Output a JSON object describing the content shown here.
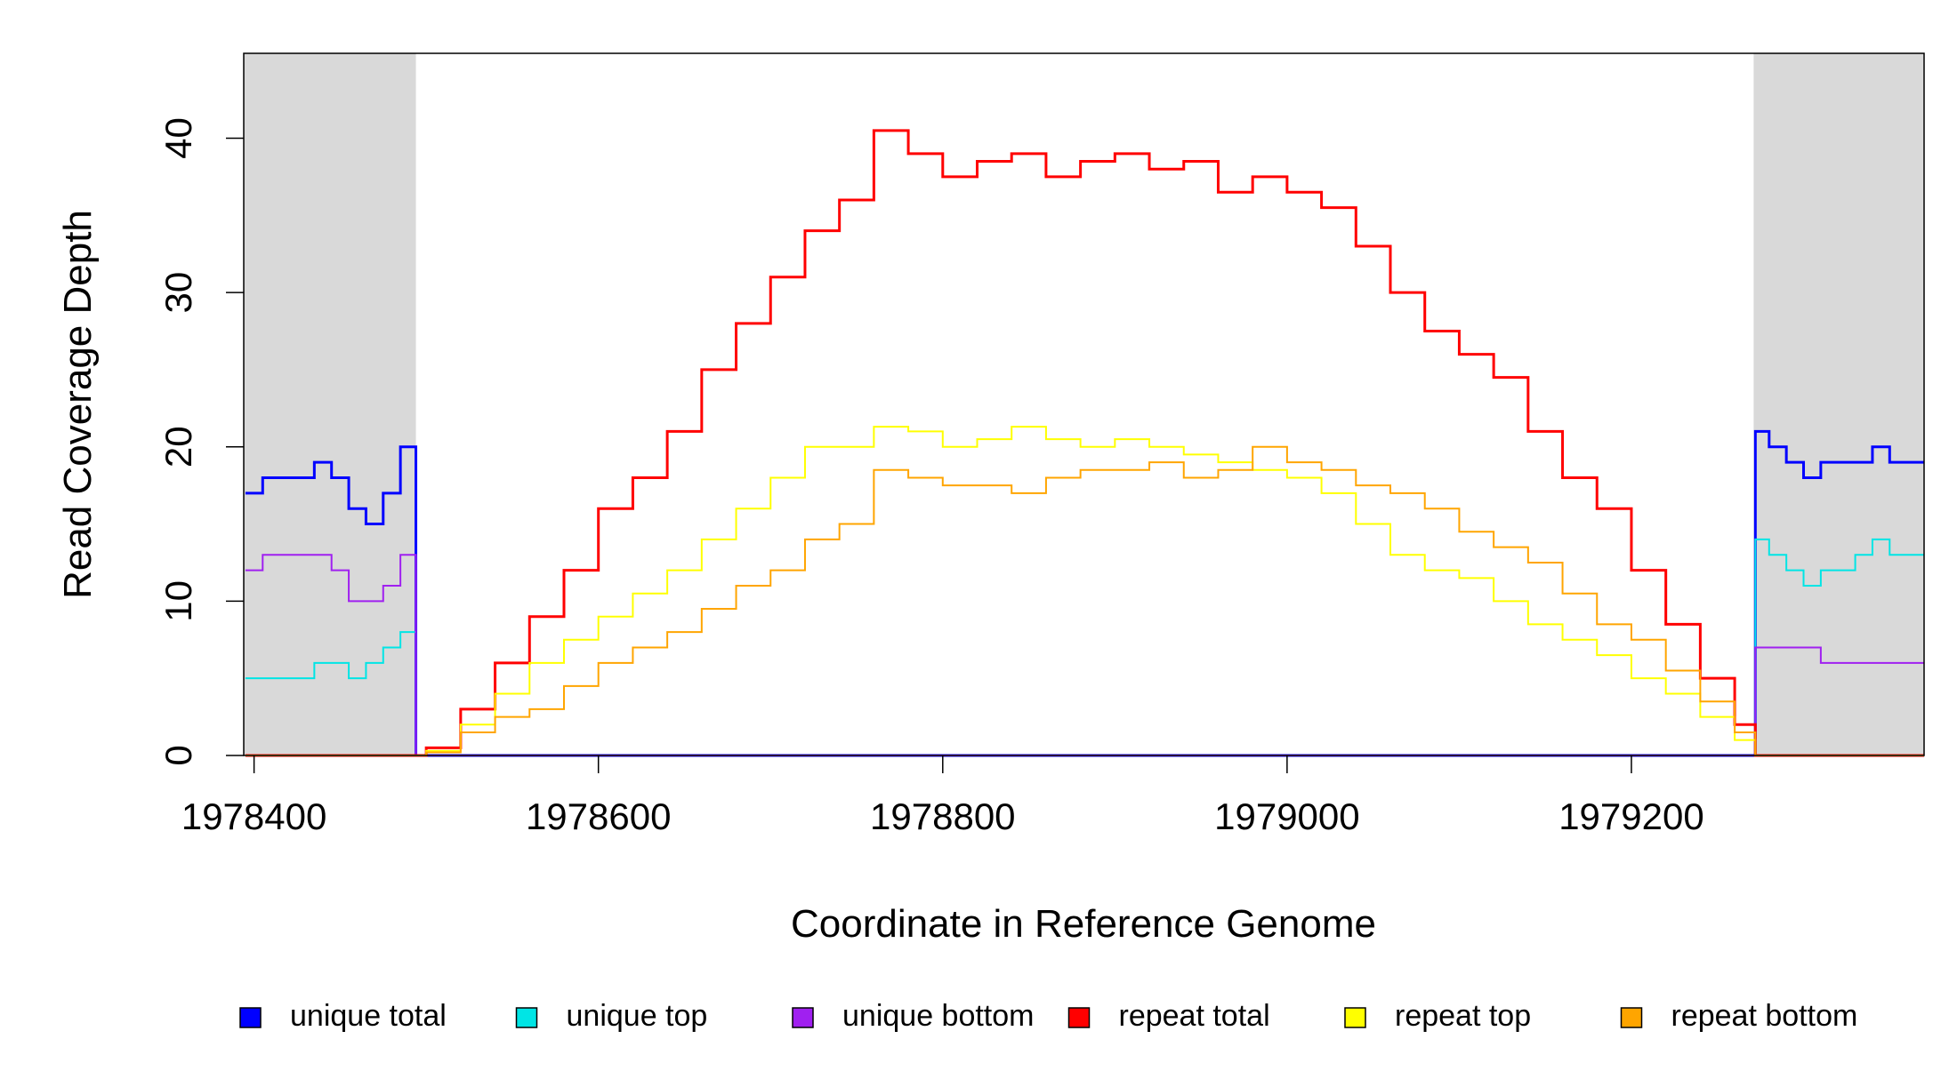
{
  "chart_data": {
    "type": "step-line",
    "x_label": "Coordinate in Reference Genome",
    "y_label": "Read Coverage Depth",
    "xlim": [
      1978394,
      1979370
    ],
    "ylim": [
      0,
      45.5
    ],
    "xticks": [
      1978400,
      1978600,
      1978800,
      1979000,
      1979200
    ],
    "yticks": [
      0,
      10,
      20,
      30,
      40
    ],
    "shaded_regions": [
      [
        1978394,
        1978494
      ],
      [
        1979271,
        1979370
      ]
    ],
    "shade_color": "#d9d9d9",
    "legend": "bottom",
    "x": [
      1978395,
      1978405,
      1978415,
      1978425,
      1978435,
      1978445,
      1978455,
      1978465,
      1978475,
      1978485,
      1978494,
      1978500,
      1978520,
      1978540,
      1978560,
      1978580,
      1978600,
      1978620,
      1978640,
      1978660,
      1978680,
      1978700,
      1978720,
      1978740,
      1978760,
      1978780,
      1978800,
      1978820,
      1978840,
      1978860,
      1978880,
      1978900,
      1978920,
      1978940,
      1978960,
      1978980,
      1979000,
      1979020,
      1979040,
      1979060,
      1979080,
      1979100,
      1979120,
      1979140,
      1979160,
      1979180,
      1979200,
      1979220,
      1979240,
      1979260,
      1979272,
      1979280,
      1979290,
      1979300,
      1979310,
      1979320,
      1979330,
      1979340,
      1979350,
      1979360,
      1979370
    ],
    "series": [
      {
        "name": "unique total",
        "color": "#0000ff",
        "width": 3,
        "values": [
          17,
          18,
          18,
          18,
          19,
          18,
          16,
          15,
          17,
          20,
          0,
          0,
          0,
          0,
          0,
          0,
          0,
          0,
          0,
          0,
          0,
          0,
          0,
          0,
          0,
          0,
          0,
          0,
          0,
          0,
          0,
          0,
          0,
          0,
          0,
          0,
          0,
          0,
          0,
          0,
          0,
          0,
          0,
          0,
          0,
          0,
          0,
          0,
          0,
          0,
          21,
          20,
          19,
          18,
          19,
          19,
          19,
          20,
          19,
          19,
          19
        ]
      },
      {
        "name": "unique top",
        "color": "#00e5e5",
        "width": 2,
        "values": [
          5,
          5,
          5,
          5,
          6,
          6,
          5,
          6,
          7,
          8,
          0,
          0,
          0,
          0,
          0,
          0,
          0,
          0,
          0,
          0,
          0,
          0,
          0,
          0,
          0,
          0,
          0,
          0,
          0,
          0,
          0,
          0,
          0,
          0,
          0,
          0,
          0,
          0,
          0,
          0,
          0,
          0,
          0,
          0,
          0,
          0,
          0,
          0,
          0,
          0,
          14,
          13,
          12,
          11,
          12,
          12,
          13,
          14,
          13,
          13,
          13
        ]
      },
      {
        "name": "unique bottom",
        "color": "#a020f0",
        "width": 2,
        "values": [
          12,
          13,
          13,
          13,
          13,
          12,
          10,
          10,
          11,
          13,
          0,
          0,
          0,
          0,
          0,
          0,
          0,
          0,
          0,
          0,
          0,
          0,
          0,
          0,
          0,
          0,
          0,
          0,
          0,
          0,
          0,
          0,
          0,
          0,
          0,
          0,
          0,
          0,
          0,
          0,
          0,
          0,
          0,
          0,
          0,
          0,
          0,
          0,
          0,
          0,
          7,
          7,
          7,
          7,
          6,
          6,
          6,
          6,
          6,
          6,
          6
        ]
      },
      {
        "name": "repeat total",
        "color": "#ff0000",
        "width": 3,
        "values": [
          0,
          0,
          0,
          0,
          0,
          0,
          0,
          0,
          0,
          0,
          0,
          0.5,
          3,
          6,
          9,
          12,
          16,
          18,
          21,
          25,
          28,
          31,
          34,
          36,
          40.5,
          39,
          37.5,
          38.5,
          39,
          37.5,
          38.5,
          39,
          38,
          38.5,
          36.5,
          37.5,
          36.5,
          35.5,
          33,
          30,
          27.5,
          26,
          24.5,
          21,
          18,
          16,
          12,
          8.5,
          5,
          2,
          0,
          0,
          0,
          0,
          0,
          0,
          0,
          0,
          0,
          0,
          0
        ]
      },
      {
        "name": "repeat top",
        "color": "#ffff00",
        "width": 2,
        "values": [
          0,
          0,
          0,
          0,
          0,
          0,
          0,
          0,
          0,
          0,
          0,
          0.3,
          2,
          4,
          6,
          7.5,
          9,
          10.5,
          12,
          14,
          16,
          18,
          20,
          20,
          21.3,
          21,
          20,
          20.5,
          21.3,
          20.5,
          20,
          20.5,
          20,
          19.5,
          19,
          18.5,
          18,
          17,
          15,
          13,
          12,
          11.5,
          10,
          8.5,
          7.5,
          6.5,
          5,
          4,
          2.5,
          1,
          0,
          0,
          0,
          0,
          0,
          0,
          0,
          0,
          0,
          0,
          0
        ]
      },
      {
        "name": "repeat bottom",
        "color": "#ffa500",
        "width": 2,
        "values": [
          0,
          0,
          0,
          0,
          0,
          0,
          0,
          0,
          0,
          0,
          0,
          0.2,
          1.5,
          2.5,
          3,
          4.5,
          6,
          7,
          8,
          9.5,
          11,
          12,
          14,
          15,
          18.5,
          18,
          17.5,
          17.5,
          17,
          18,
          18.5,
          18.5,
          19,
          18,
          18.5,
          20,
          19,
          18.5,
          17.5,
          17,
          16,
          14.5,
          13.5,
          12.5,
          10.5,
          8.5,
          7.5,
          5.5,
          3.5,
          1.5,
          0,
          0,
          0,
          0,
          0,
          0,
          0,
          0,
          0,
          0,
          0
        ]
      }
    ]
  }
}
